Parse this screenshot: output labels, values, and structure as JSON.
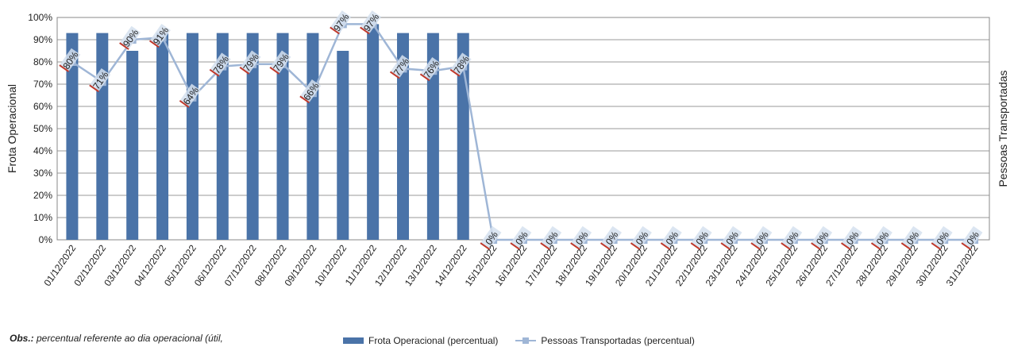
{
  "chart_data": {
    "type": "bar",
    "categories": [
      "01/12/2022",
      "02/12/2022",
      "03/12/2022",
      "04/12/2022",
      "05/12/2022",
      "06/12/2022",
      "07/12/2022",
      "08/12/2022",
      "09/12/2022",
      "10/12/2022",
      "11/12/2022",
      "12/12/2022",
      "13/12/2022",
      "14/12/2022",
      "15/12/2022",
      "16/12/2022",
      "17/12/2022",
      "18/12/2022",
      "19/12/2022",
      "20/12/2022",
      "21/12/2022",
      "22/12/2022",
      "23/12/2022",
      "24/12/2022",
      "25/12/2022",
      "26/12/2022",
      "27/12/2022",
      "28/12/2022",
      "29/12/2022",
      "30/12/2022",
      "31/12/2022"
    ],
    "series": [
      {
        "name": "Frota Operacional (percentual)",
        "kind": "bar",
        "color": "#4a73a8",
        "values": [
          93,
          93,
          85,
          93,
          93,
          93,
          93,
          93,
          93,
          85,
          97,
          93,
          93,
          93,
          0,
          0,
          0,
          0,
          0,
          0,
          0,
          0,
          0,
          0,
          0,
          0,
          0,
          0,
          0,
          0,
          0
        ]
      },
      {
        "name": "Pessoas Transportadas (percentual)",
        "kind": "line",
        "color": "#9fb6d6",
        "values": [
          80,
          71,
          90,
          91,
          64,
          78,
          79,
          79,
          66,
          97,
          97,
          77,
          76,
          78,
          0,
          0,
          0,
          0,
          0,
          0,
          0,
          0,
          0,
          0,
          0,
          0,
          0,
          0,
          0,
          0,
          0
        ],
        "data_labels": [
          "80%",
          "71%",
          "90%",
          "91%",
          "64%",
          "78%",
          "79%",
          "79%",
          "66%",
          "97%",
          "97%",
          "77%",
          "76%",
          "78%",
          "0%",
          "0%",
          "0%",
          "0%",
          "0%",
          "0%",
          "0%",
          "0%",
          "0%",
          "0%",
          "0%",
          "0%",
          "0%",
          "0%",
          "0%",
          "0%",
          "0%"
        ]
      }
    ],
    "yticks": [
      "0%",
      "10%",
      "20%",
      "30%",
      "40%",
      "50%",
      "60%",
      "70%",
      "80%",
      "90%",
      "100%"
    ],
    "ylim": [
      0,
      100
    ],
    "ylabel": "Frota Operacional",
    "y2label": "Pessoas Transportadas",
    "grid": true,
    "legend_position": "bottom"
  },
  "legend": {
    "bar_label": "Frota Operacional (percentual)",
    "line_label": "Pessoas Transportadas (percentual)"
  },
  "note": {
    "bold": "Obs.:",
    "text": " percentual referente ao dia operacional (útil,"
  },
  "colors": {
    "bar": "#4a73a8",
    "line": "#9fb6d6",
    "label_mark": "#c0392b",
    "grid": "#999999"
  }
}
